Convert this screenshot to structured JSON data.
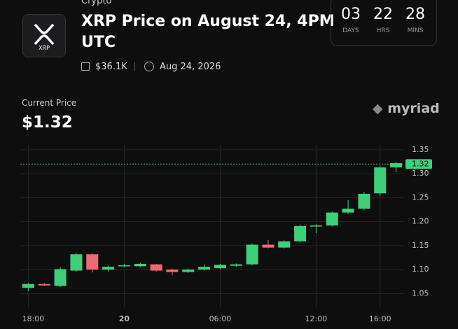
{
  "header": {
    "category": "Crypto",
    "title_line1": "XRP Price on August 24, 4PM",
    "title_line2": "UTC",
    "logo_text": "XRP",
    "volume": "$36.1K",
    "date": "Aug 24, 2026"
  },
  "countdown": [
    {
      "value": "03",
      "unit": "DAYS"
    },
    {
      "value": "22",
      "unit": "HRS"
    },
    {
      "value": "28",
      "unit": "MINS"
    }
  ],
  "current_price": {
    "label": "Current Price",
    "value": "$1.32"
  },
  "brand": "myriad",
  "chart_data": {
    "type": "candlestick",
    "categories": [
      "18:00",
      null,
      null,
      null,
      null,
      null,
      "20",
      null,
      null,
      null,
      null,
      null,
      "06:00",
      null,
      null,
      null,
      null,
      null,
      "12:00",
      null,
      null,
      null,
      "16:00",
      null
    ],
    "series": [
      {
        "up_color": "#3ecf7a",
        "down_color": "#ef6b73",
        "open": [
          1.062,
          1.07,
          1.066,
          1.098,
          1.132,
          1.1,
          1.107,
          1.107,
          1.111,
          1.1,
          1.095,
          1.1,
          1.103,
          1.108,
          1.111,
          1.152,
          1.146,
          1.159,
          1.191,
          1.192,
          1.219,
          1.227,
          1.259,
          1.313
        ],
        "high": [
          1.072,
          1.072,
          1.105,
          1.134,
          1.134,
          1.108,
          1.112,
          1.114,
          1.112,
          1.102,
          1.102,
          1.111,
          1.112,
          1.113,
          1.154,
          1.162,
          1.161,
          1.194,
          1.195,
          1.221,
          1.245,
          1.262,
          1.316,
          1.325
        ],
        "low": [
          1.055,
          1.066,
          1.064,
          1.096,
          1.094,
          1.096,
          1.105,
          1.105,
          1.096,
          1.088,
          1.093,
          1.098,
          1.101,
          1.106,
          1.109,
          1.144,
          1.144,
          1.157,
          1.176,
          1.19,
          1.216,
          1.224,
          1.254,
          1.303
        ],
        "close": [
          1.07,
          1.067,
          1.101,
          1.132,
          1.1,
          1.106,
          1.109,
          1.112,
          1.098,
          1.095,
          1.1,
          1.106,
          1.11,
          1.111,
          1.152,
          1.146,
          1.159,
          1.191,
          1.192,
          1.219,
          1.227,
          1.258,
          1.313,
          1.322
        ]
      }
    ],
    "ylim": [
      1.02,
      1.36
    ],
    "yticks": [
      1.05,
      {
        "value": 1.1,
        "label": "1.10"
      },
      1.15,
      {
        "value": 1.2,
        "label": "1.20"
      },
      1.25,
      {
        "value": 1.3,
        "label": "1.30"
      },
      1.35
    ],
    "current_marker": 1.32,
    "marker_color": "#3ecf7a",
    "grid": true
  }
}
